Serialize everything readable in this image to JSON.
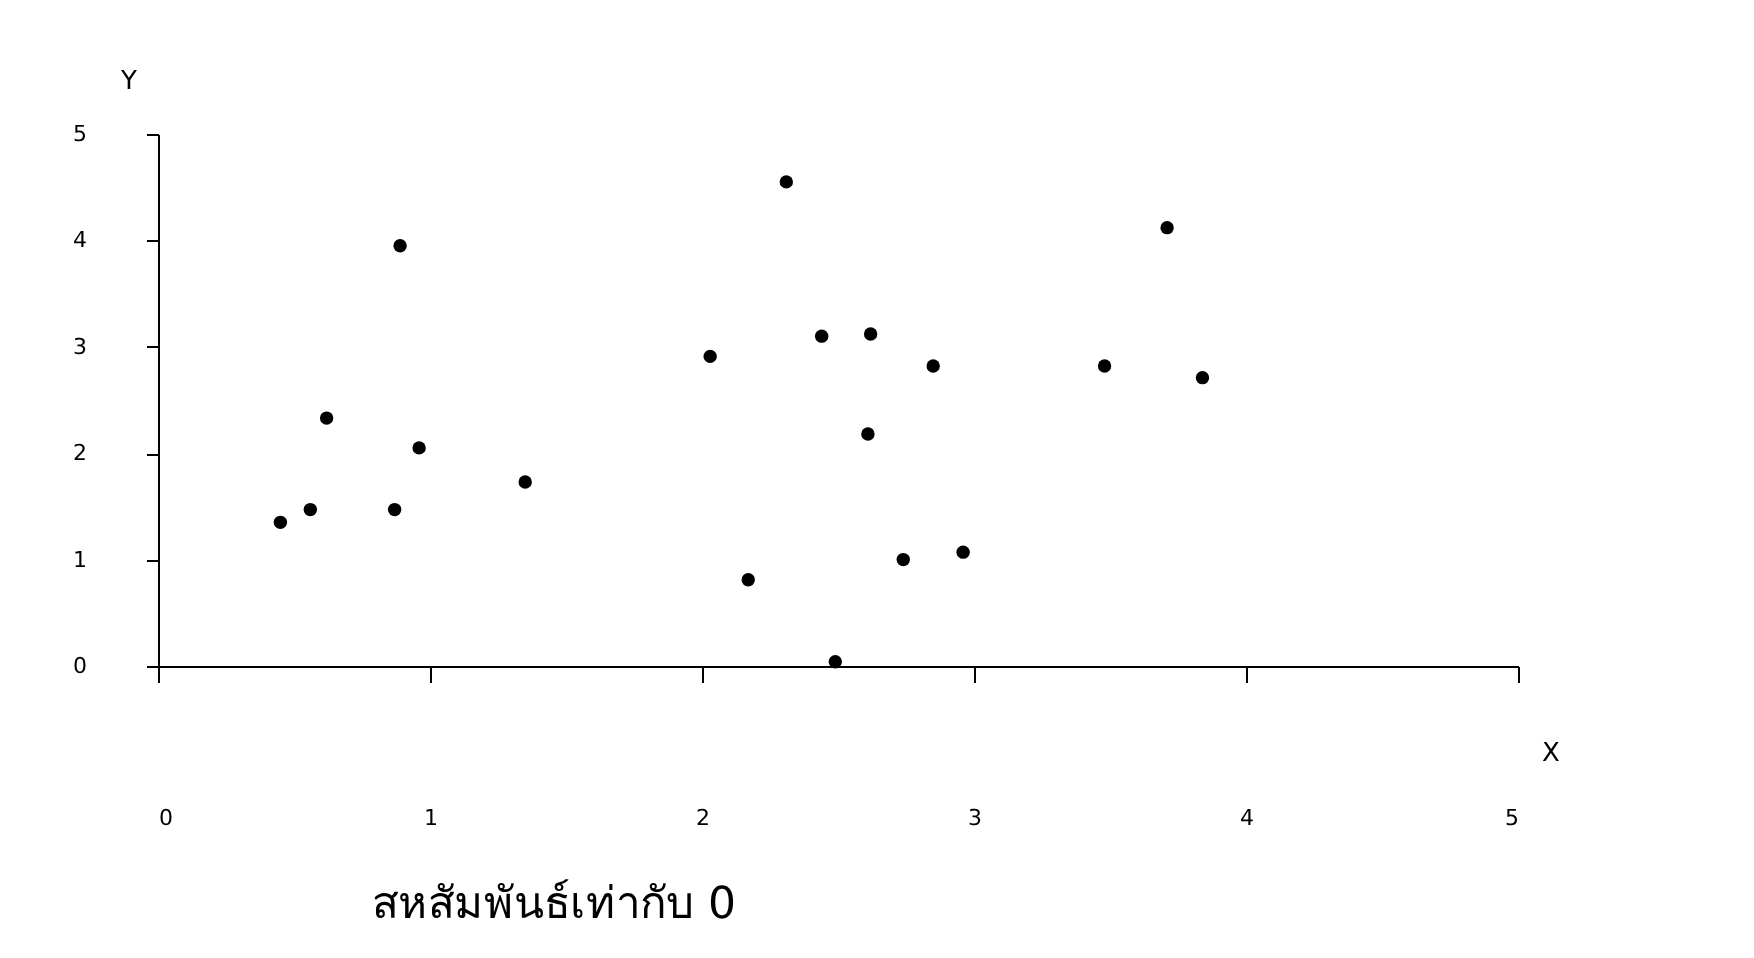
{
  "chart_data": {
    "type": "scatter",
    "title": "สหสัมพันธ์เท่ากับ 0",
    "xlabel": "X",
    "ylabel": "Y",
    "x": [
      0.45,
      0.56,
      0.62,
      0.87,
      0.89,
      0.96,
      1.35,
      2.03,
      2.17,
      2.31,
      2.44,
      2.49,
      2.61,
      2.62,
      2.74,
      2.85,
      2.96,
      3.48,
      3.71,
      3.84
    ],
    "series": [
      {
        "color": "#000000",
        "values": [
          1.35,
          1.47,
          2.33,
          1.47,
          3.95,
          2.05,
          1.73,
          2.91,
          0.81,
          4.55,
          3.1,
          0.04,
          2.18,
          3.12,
          1.0,
          2.82,
          1.07,
          2.82,
          4.12,
          2.71
        ]
      }
    ],
    "xlim": [
      0,
      5
    ],
    "ylim": [
      0,
      5
    ],
    "xticks": [
      0,
      1,
      2,
      3,
      4,
      5
    ],
    "yticks": [
      0,
      1,
      2,
      3,
      4,
      5
    ],
    "grid": false,
    "marker": "circle"
  }
}
